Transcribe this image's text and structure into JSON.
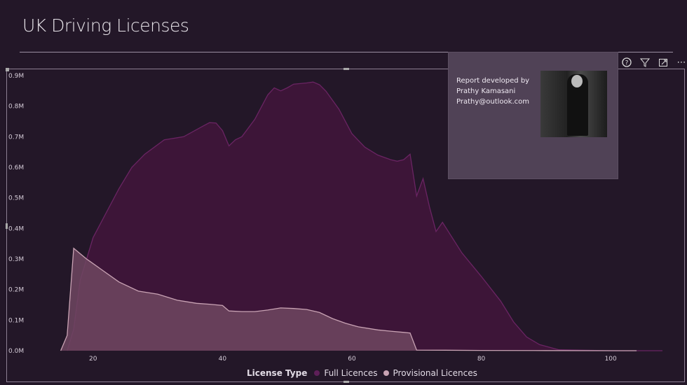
{
  "page": {
    "title": "UK Driving Licenses"
  },
  "header_icons": [
    {
      "name": "help-icon",
      "glyph": "?"
    },
    {
      "name": "filter-icon",
      "glyph": "⏷"
    },
    {
      "name": "focus-mode-icon",
      "glyph": "⧉"
    },
    {
      "name": "more-options-icon",
      "glyph": "⋯"
    }
  ],
  "tooltip": {
    "line1": "Report developed by",
    "line2": "Prathy Kamasani",
    "line3": "Prathy@outlook.com"
  },
  "legend": {
    "title": "License Type",
    "items": [
      "Full Licences",
      "Provisional Licences"
    ]
  },
  "colors": {
    "background": "#231728",
    "full_fill": "#3d1538",
    "full_stroke": "#6a2463",
    "prov_fill": "#6f4760",
    "prov_stroke": "#c9a3b4"
  },
  "chart_data": {
    "type": "area",
    "xlabel": "",
    "ylabel": "",
    "xlim": [
      8,
      108
    ],
    "ylim": [
      0,
      900000
    ],
    "x_ticks": [
      20,
      40,
      60,
      80,
      100
    ],
    "x_tick_labels": [
      "20",
      "40",
      "60",
      "80",
      "100"
    ],
    "y_ticks": [
      0,
      100000,
      200000,
      300000,
      400000,
      500000,
      600000,
      700000,
      800000,
      900000
    ],
    "y_tick_labels": [
      "0.0M",
      "0.1M",
      "0.2M",
      "0.3M",
      "0.4M",
      "0.5M",
      "0.6M",
      "0.7M",
      "0.8M",
      "0.9M"
    ],
    "legend_position": "bottom",
    "series": [
      {
        "name": "Full Licences",
        "x": [
          16,
          17,
          18,
          20,
          22,
          24,
          26,
          28,
          31,
          34,
          37,
          38,
          39,
          40,
          41,
          42,
          43,
          45,
          47,
          48,
          49,
          50,
          51,
          53,
          54,
          55,
          56,
          58,
          60,
          62,
          64,
          66,
          67,
          68,
          69,
          70,
          71,
          72,
          73,
          74,
          77,
          80,
          83,
          85,
          87,
          89,
          92,
          100,
          108
        ],
        "y": [
          0,
          70000,
          230000,
          370000,
          450000,
          530000,
          600000,
          643000,
          690000,
          700000,
          735000,
          746000,
          745000,
          720000,
          670000,
          690000,
          700000,
          757000,
          837000,
          860000,
          850000,
          860000,
          872000,
          876000,
          879000,
          870000,
          849000,
          790000,
          710000,
          666000,
          640000,
          625000,
          620000,
          625000,
          643000,
          506000,
          563000,
          470000,
          390000,
          420000,
          320000,
          243000,
          162000,
          94000,
          45000,
          20000,
          3000,
          0,
          0
        ]
      },
      {
        "name": "Provisional Licences",
        "x": [
          15,
          16,
          17,
          19,
          21,
          24,
          27,
          30,
          33,
          36,
          38,
          40,
          41,
          43,
          45,
          47,
          49,
          51,
          53,
          55,
          57,
          59,
          61,
          64,
          66,
          68,
          69,
          70,
          80,
          90,
          104
        ],
        "y": [
          0,
          50000,
          335000,
          300000,
          270000,
          225000,
          195000,
          185000,
          165000,
          155000,
          152000,
          148000,
          130000,
          128000,
          128000,
          133000,
          140000,
          138000,
          135000,
          125000,
          105000,
          90000,
          78000,
          68000,
          64000,
          60000,
          58000,
          2000,
          1000,
          500,
          0
        ]
      }
    ]
  }
}
